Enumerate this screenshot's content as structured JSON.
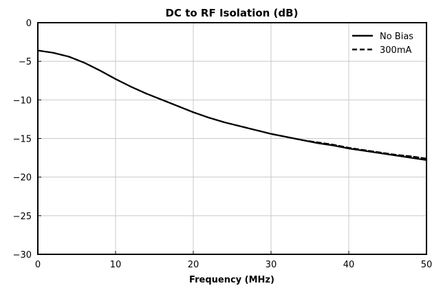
{
  "chart_data": {
    "type": "line",
    "title": "DC to RF Isolation (dB)",
    "xlabel": "Frequency (MHz)",
    "ylabel": "",
    "xlim": [
      0,
      50
    ],
    "ylim": [
      -30,
      0
    ],
    "xticks": [
      0,
      10,
      20,
      30,
      40,
      50
    ],
    "yticks": [
      0,
      -5,
      -10,
      -15,
      -20,
      -25,
      -30
    ],
    "grid": true,
    "legend_position": "top-right",
    "x": [
      0,
      2,
      4,
      6,
      8,
      10,
      12,
      14,
      16,
      18,
      20,
      22,
      24,
      26,
      28,
      30,
      32,
      34,
      36,
      38,
      40,
      42,
      44,
      46,
      48,
      50
    ],
    "series": [
      {
        "name": "No Bias",
        "style": "solid",
        "color": "#000000",
        "values": [
          -3.6,
          -3.9,
          -4.4,
          -5.2,
          -6.2,
          -7.3,
          -8.3,
          -9.2,
          -10.0,
          -10.8,
          -11.6,
          -12.3,
          -12.9,
          -13.4,
          -13.9,
          -14.4,
          -14.8,
          -15.2,
          -15.6,
          -15.9,
          -16.3,
          -16.6,
          -16.9,
          -17.2,
          -17.5,
          -17.8
        ]
      },
      {
        "name": "300mA",
        "style": "dashed",
        "color": "#000000",
        "values": [
          -3.6,
          -3.9,
          -4.4,
          -5.2,
          -6.2,
          -7.3,
          -8.3,
          -9.2,
          -10.0,
          -10.8,
          -11.6,
          -12.3,
          -12.9,
          -13.4,
          -13.9,
          -14.4,
          -14.8,
          -15.2,
          -15.5,
          -15.8,
          -16.2,
          -16.5,
          -16.8,
          -17.1,
          -17.3,
          -17.6
        ]
      }
    ]
  }
}
